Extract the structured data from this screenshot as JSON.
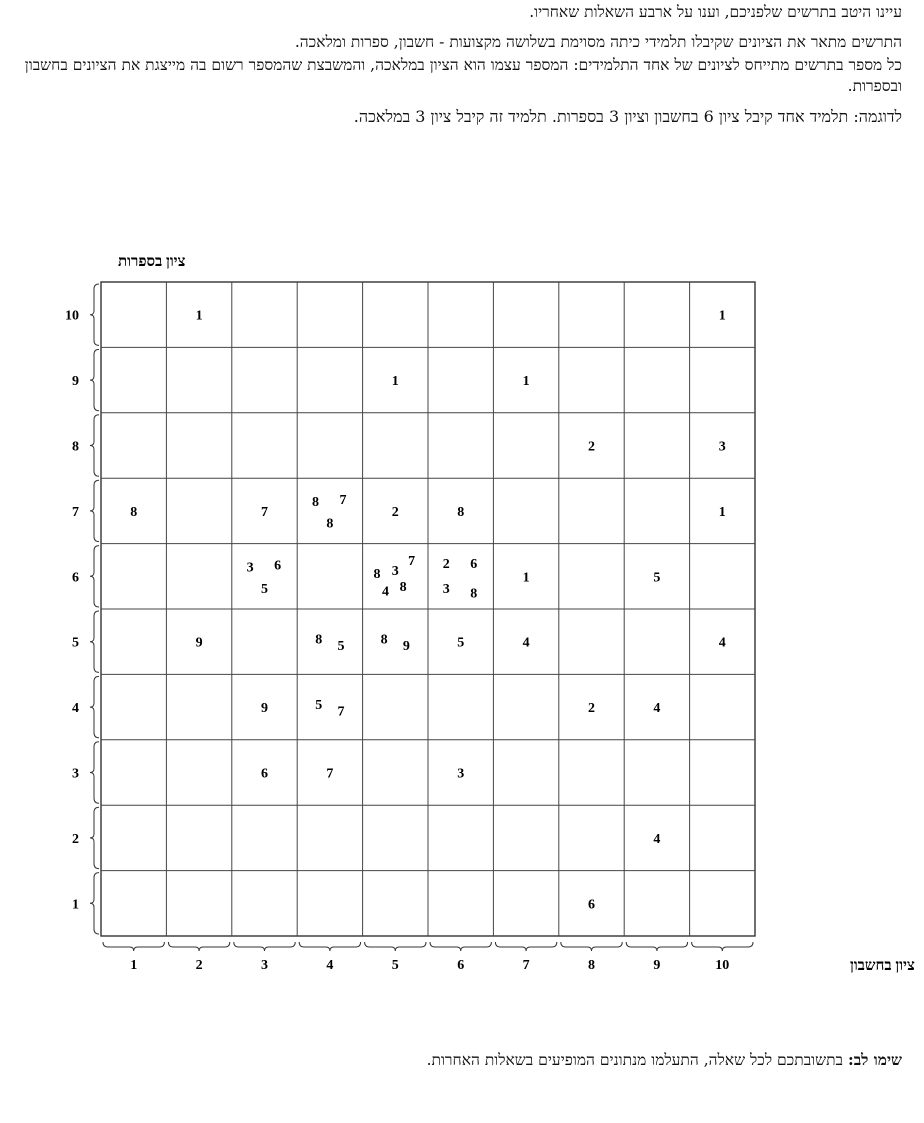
{
  "intro": {
    "line1": "עיינו היטב בתרשים שלפניכם, וענו על ארבע השאלות שאחריו.",
    "line2": "התרשים מתאר את הציונים שקיבלו תלמידי כיתה מסוימת בשלושה מקצועות - חשבון, ספרות ומלאכה.",
    "line3": "כל מספר בתרשים מתייחס לציונים של אחד התלמידים: המספר עצמו הוא הציון במלאכה, והמשבצת שהמספר רשום בה מייצגת את הציונים בחשבון ובספרות.",
    "example": "לדוגמה: תלמיד אחד קיבל ציון 6 בחשבון וציון 3 בספרות.  תלמיד זה קיבל ציון 3 במלאכה."
  },
  "notice": {
    "bold": "שימו לב:",
    "text": " בתשובתכם לכל שאלה, התעלמו מנתונים המופיעים בשאלות האחרות."
  },
  "chart_data": {
    "type": "scatter",
    "xlabel": "ציון בחשבון",
    "ylabel": "ציון בספרות",
    "xlim": [
      1,
      10
    ],
    "ylim": [
      1,
      10
    ],
    "x_ticks": [
      "1",
      "2",
      "3",
      "4",
      "5",
      "6",
      "7",
      "8",
      "9",
      "10"
    ],
    "y_ticks": [
      "1",
      "2",
      "3",
      "4",
      "5",
      "6",
      "7",
      "8",
      "9",
      "10"
    ],
    "grid": true,
    "value_meaning": "ציון במלאכה",
    "points": [
      {
        "x": 2,
        "y": 10,
        "v": 1
      },
      {
        "x": 10,
        "y": 10,
        "v": 1
      },
      {
        "x": 5,
        "y": 9,
        "v": 1
      },
      {
        "x": 7,
        "y": 9,
        "v": 1
      },
      {
        "x": 8,
        "y": 8,
        "v": 2
      },
      {
        "x": 10,
        "y": 8,
        "v": 3
      },
      {
        "x": 1,
        "y": 7,
        "v": 8
      },
      {
        "x": 3,
        "y": 7,
        "v": 7
      },
      {
        "x": 4,
        "y": 7,
        "v": 8
      },
      {
        "x": 4,
        "y": 7,
        "v": 7
      },
      {
        "x": 4,
        "y": 7,
        "v": 8
      },
      {
        "x": 5,
        "y": 7,
        "v": 2
      },
      {
        "x": 6,
        "y": 7,
        "v": 8
      },
      {
        "x": 10,
        "y": 7,
        "v": 1
      },
      {
        "x": 3,
        "y": 6,
        "v": 3
      },
      {
        "x": 3,
        "y": 6,
        "v": 6
      },
      {
        "x": 3,
        "y": 6,
        "v": 5
      },
      {
        "x": 5,
        "y": 6,
        "v": 8
      },
      {
        "x": 5,
        "y": 6,
        "v": 3
      },
      {
        "x": 5,
        "y": 6,
        "v": 7
      },
      {
        "x": 5,
        "y": 6,
        "v": 4
      },
      {
        "x": 5,
        "y": 6,
        "v": 8
      },
      {
        "x": 6,
        "y": 6,
        "v": 2
      },
      {
        "x": 6,
        "y": 6,
        "v": 6
      },
      {
        "x": 6,
        "y": 6,
        "v": 3
      },
      {
        "x": 6,
        "y": 6,
        "v": 8
      },
      {
        "x": 7,
        "y": 6,
        "v": 1
      },
      {
        "x": 9,
        "y": 6,
        "v": 5
      },
      {
        "x": 2,
        "y": 5,
        "v": 9
      },
      {
        "x": 4,
        "y": 5,
        "v": 8
      },
      {
        "x": 4,
        "y": 5,
        "v": 5
      },
      {
        "x": 5,
        "y": 5,
        "v": 8
      },
      {
        "x": 5,
        "y": 5,
        "v": 9
      },
      {
        "x": 6,
        "y": 5,
        "v": 5
      },
      {
        "x": 7,
        "y": 5,
        "v": 4
      },
      {
        "x": 10,
        "y": 5,
        "v": 4
      },
      {
        "x": 3,
        "y": 4,
        "v": 9
      },
      {
        "x": 4,
        "y": 4,
        "v": 5
      },
      {
        "x": 4,
        "y": 4,
        "v": 7
      },
      {
        "x": 8,
        "y": 4,
        "v": 2
      },
      {
        "x": 9,
        "y": 4,
        "v": 4
      },
      {
        "x": 3,
        "y": 3,
        "v": 6
      },
      {
        "x": 4,
        "y": 3,
        "v": 7
      },
      {
        "x": 6,
        "y": 3,
        "v": 3
      },
      {
        "x": 9,
        "y": 2,
        "v": 4
      },
      {
        "x": 8,
        "y": 1,
        "v": 6
      }
    ]
  }
}
